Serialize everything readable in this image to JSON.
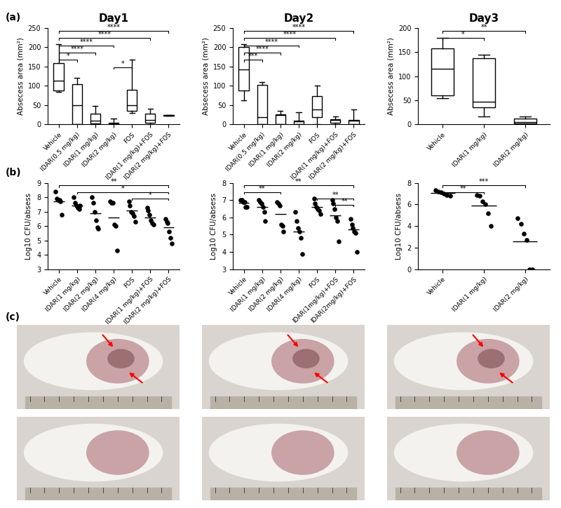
{
  "panel_labels": [
    "(a)",
    "(b)",
    "(c)"
  ],
  "chart_data": [
    {
      "type": "box",
      "title": "Day1",
      "y_label": "Absecess area (mm²)",
      "color": "#000000",
      "categories": [
        "Vehicle",
        "IDAR(0.5 mg/kg)",
        "IDAR(1 mg/kg)",
        "IDAR(2 mg/kg)",
        "FOS",
        "IDAR(1 mg/kg)+FOS",
        "IDAR(2 mg/kg)+FOS"
      ],
      "boxes": [
        {
          "min": 85,
          "q1": 88,
          "median": 113,
          "q3": 158,
          "max": 208
        },
        {
          "min": 0,
          "q1": 0,
          "median": 50,
          "q3": 105,
          "max": 120
        },
        {
          "min": 0,
          "q1": 2,
          "median": 10,
          "q3": 28,
          "max": 48
        },
        {
          "min": 0,
          "q1": 0,
          "median": 2,
          "q3": 5,
          "max": 15
        },
        {
          "min": 30,
          "q1": 35,
          "median": 50,
          "q3": 90,
          "max": 167
        },
        {
          "min": 0,
          "q1": 5,
          "median": 12,
          "q3": 28,
          "max": 40
        },
        {
          "min": 23,
          "q1": 23,
          "median": 24,
          "q3": 25,
          "max": 25
        }
      ],
      "comparisons": [
        {
          "pair": [
            0,
            6
          ],
          "label": "****"
        },
        {
          "pair": [
            0,
            5
          ],
          "label": "****"
        },
        {
          "pair": [
            0,
            3
          ],
          "label": "****"
        },
        {
          "pair": [
            0,
            2
          ],
          "label": "****"
        },
        {
          "pair": [
            0,
            1
          ],
          "label": "*"
        },
        {
          "pair": [
            3,
            4
          ],
          "label": "*"
        }
      ],
      "ylim": [
        0,
        250
      ],
      "yticks": [
        0,
        50,
        100,
        150,
        200,
        250
      ]
    },
    {
      "type": "box",
      "title": "Day2",
      "y_label": "Absecess area (mm²)",
      "color": "#000000",
      "categories": [
        "Vehicle",
        "IDAR(0.5 mg/kg)",
        "IDAR(1 mg/kg)",
        "IDAR(2 mg/kg)",
        "FOS",
        "IDAR(1 mg/kg)+FOS",
        "IDAR(2 mg/kg)+FOS"
      ],
      "boxes": [
        {
          "min": 62,
          "q1": 88,
          "median": 143,
          "q3": 200,
          "max": 208
        },
        {
          "min": 0,
          "q1": 0,
          "median": 18,
          "q3": 102,
          "max": 110
        },
        {
          "min": 0,
          "q1": 0,
          "median": 25,
          "q3": 27,
          "max": 35
        },
        {
          "min": 0,
          "q1": 0,
          "median": 8,
          "q3": 10,
          "max": 32
        },
        {
          "min": 0,
          "q1": 18,
          "median": 38,
          "q3": 73,
          "max": 100
        },
        {
          "min": 0,
          "q1": 5,
          "median": 12,
          "q3": 14,
          "max": 20
        },
        {
          "min": 0,
          "q1": 0,
          "median": 10,
          "q3": 12,
          "max": 38
        }
      ],
      "comparisons": [
        {
          "pair": [
            0,
            6
          ],
          "label": "****"
        },
        {
          "pair": [
            0,
            5
          ],
          "label": "****"
        },
        {
          "pair": [
            0,
            3
          ],
          "label": "****"
        },
        {
          "pair": [
            0,
            2
          ],
          "label": "****"
        },
        {
          "pair": [
            0,
            1
          ],
          "label": "***"
        }
      ],
      "ylim": [
        0,
        250
      ],
      "yticks": [
        0,
        50,
        100,
        150,
        200,
        250
      ]
    },
    {
      "type": "box",
      "title": "Day3",
      "y_label": "Absecess area (mm²)",
      "color": "#000000",
      "categories": [
        "Vehicle",
        "IDAR(1 mg/kg)",
        "IDAR(2 mg/kg)"
      ],
      "boxes": [
        {
          "min": 55,
          "q1": 60,
          "median": 115,
          "q3": 157,
          "max": 180
        },
        {
          "min": 17,
          "q1": 35,
          "median": 47,
          "q3": 137,
          "max": 145
        },
        {
          "min": 0,
          "q1": 2,
          "median": 5,
          "q3": 12,
          "max": 17
        }
      ],
      "comparisons": [
        {
          "pair": [
            0,
            2
          ],
          "label": "**"
        },
        {
          "pair": [
            0,
            1
          ],
          "label": "*"
        }
      ],
      "ylim": [
        0,
        200
      ],
      "yticks": [
        0,
        50,
        100,
        150,
        200
      ]
    },
    {
      "type": "scatter",
      "y_label": "Log10 CFU/absess",
      "color": "#000000",
      "marker": "o",
      "categories": [
        "Vehicle",
        "IDAR(1 mg/kg)",
        "IDAR(2 mg/kg)",
        "IDAR(4 mg/kg)",
        "FOS",
        "IDAR(1 mg/kg)+FOS",
        "IDAR(2 mg/kg)+FOS"
      ],
      "points": [
        [
          8.4,
          7.9,
          7.8,
          7.8,
          7.7,
          6.8
        ],
        [
          8.0,
          7.6,
          7.4,
          7.3,
          7.2,
          7.4
        ],
        [
          8.0,
          7.6,
          7.0,
          6.4,
          5.9,
          5.8
        ],
        [
          7.7,
          7.6,
          7.6,
          6.1,
          6.0,
          4.3
        ],
        [
          7.7,
          7.4,
          7.0,
          6.9,
          6.7,
          6.3
        ],
        [
          7.3,
          7.1,
          6.8,
          6.4,
          6.2,
          6.1
        ],
        [
          6.5,
          6.3,
          6.2,
          5.6,
          5.2,
          4.8
        ]
      ],
      "means": [
        7.7,
        7.4,
        6.9,
        6.6,
        7.1,
        6.6,
        5.9
      ],
      "comparisons": [
        {
          "pair": [
            0,
            6
          ],
          "label": "**"
        },
        {
          "pair": [
            1,
            6
          ],
          "label": "*"
        },
        {
          "pair": [
            4,
            6
          ],
          "label": "*"
        }
      ],
      "ylim": [
        3,
        9
      ],
      "yticks": [
        3,
        4,
        5,
        6,
        7,
        8,
        9
      ]
    },
    {
      "type": "scatter",
      "y_label": "Log10 CFU/absess",
      "color": "#000000",
      "marker": "o",
      "categories": [
        "Vehicle",
        "IDAR(1 mg/kg)",
        "IDAR(2 mg/kg)",
        "IDAR(4 mg/kg)",
        "FOS",
        "IDAR(1mg/kg)+FOS",
        "IDAR(2mg/kg)+FOS"
      ],
      "points": [
        [
          7.0,
          7.0,
          6.9,
          6.9,
          6.6,
          6.6
        ],
        [
          7.0,
          6.9,
          6.8,
          6.6,
          6.3,
          5.8
        ],
        [
          6.9,
          6.8,
          6.7,
          5.6,
          5.5,
          5.2
        ],
        [
          6.3,
          5.8,
          5.4,
          5.2,
          4.8,
          3.9
        ],
        [
          7.1,
          6.8,
          6.6,
          6.5,
          6.4,
          6.2
        ],
        [
          7.0,
          6.8,
          6.5,
          6.0,
          5.8,
          4.6
        ],
        [
          5.9,
          5.6,
          5.4,
          5.2,
          5.1,
          4.0
        ]
      ],
      "means": [
        6.85,
        6.6,
        6.2,
        5.2,
        6.6,
        6.1,
        5.3
      ],
      "comparisons": [
        {
          "pair": [
            0,
            6
          ],
          "label": "**"
        },
        {
          "pair": [
            0,
            2
          ],
          "label": "**"
        },
        {
          "pair": [
            4,
            6
          ],
          "label": "**"
        },
        {
          "pair": [
            5,
            6
          ],
          "label": "**"
        }
      ],
      "ylim": [
        3,
        8
      ],
      "yticks": [
        3,
        4,
        5,
        6,
        7,
        8
      ]
    },
    {
      "type": "scatter",
      "y_label": "Log10 CFU/absess",
      "color": "#000000",
      "marker": "o",
      "categories": [
        "Vehicle",
        "IDAR(1 mg/kg)",
        "IDAR(2 mg/kg)"
      ],
      "points": [
        [
          7.3,
          7.2,
          7.1,
          7.0,
          6.9,
          6.8
        ],
        [
          6.9,
          6.8,
          6.3,
          6.0,
          5.2,
          4.0
        ],
        [
          4.7,
          4.2,
          3.3,
          2.7,
          0,
          0
        ]
      ],
      "means": [
        7.05,
        5.9,
        2.6
      ],
      "comparisons": [
        {
          "pair": [
            0,
            2
          ],
          "label": "***"
        },
        {
          "pair": [
            0,
            1
          ],
          "label": "**"
        }
      ],
      "ylim": [
        0,
        8
      ],
      "yticks": [
        0,
        2,
        4,
        6,
        8
      ]
    }
  ]
}
